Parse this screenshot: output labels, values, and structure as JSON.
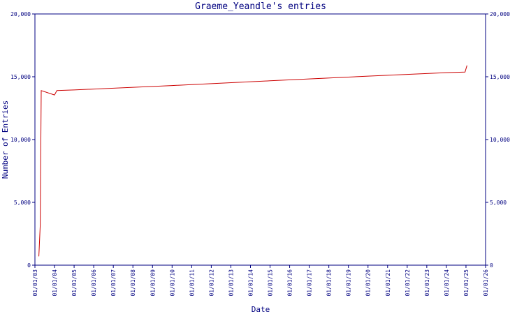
{
  "chart_data": {
    "type": "line",
    "title": "Graeme_Yeandle's entries",
    "xlabel": "Date",
    "ylabel": "Number of Entries",
    "ylim": [
      0,
      20000
    ],
    "y_ticks": [
      0,
      5000,
      10000,
      15000,
      20000
    ],
    "y_tick_labels": [
      "0",
      "5,000",
      "10,000",
      "15,000",
      "20,000"
    ],
    "x_tick_labels": [
      "01/01/03",
      "01/01/04",
      "01/01/05",
      "01/01/06",
      "01/01/07",
      "01/01/08",
      "01/01/09",
      "01/01/10",
      "01/01/11",
      "01/01/12",
      "01/01/13",
      "01/01/14",
      "01/01/15",
      "01/01/16",
      "01/01/17",
      "01/01/18",
      "01/01/19",
      "01/01/20",
      "01/01/21",
      "01/01/22",
      "01/01/23",
      "01/01/24",
      "01/01/25",
      "01/01/26"
    ],
    "xlim": [
      2003.0,
      2026.0
    ],
    "grid": false,
    "legend": "none",
    "series": [
      {
        "color": "#cc0000",
        "points": [
          [
            2003.2,
            700
          ],
          [
            2003.27,
            3200
          ],
          [
            2003.32,
            13900
          ],
          [
            2004.0,
            13550
          ],
          [
            2004.12,
            13900
          ],
          [
            2005.0,
            13950
          ],
          [
            2010.0,
            14300
          ],
          [
            2015.0,
            14680
          ],
          [
            2020.0,
            15050
          ],
          [
            2024.0,
            15330
          ],
          [
            2024.95,
            15380
          ],
          [
            2025.05,
            15900
          ]
        ]
      }
    ]
  }
}
